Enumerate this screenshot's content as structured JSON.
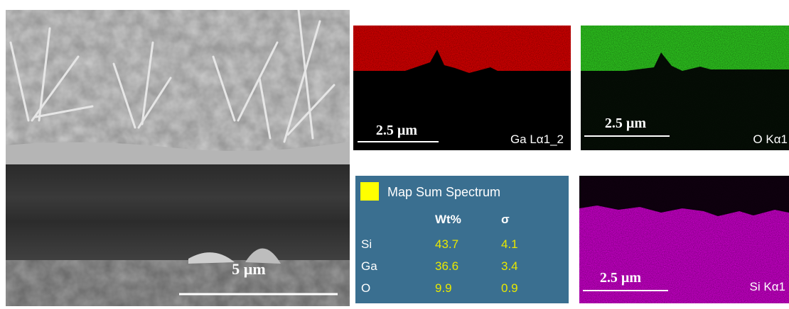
{
  "sem": {
    "scale_label": "5 µm"
  },
  "maps": [
    {
      "scale_label": "2.5 µm",
      "element": "Ga Lα1_2"
    },
    {
      "scale_label": "2.5 µm",
      "element": "O Kα1"
    },
    {
      "scale_label": "2.5 µm",
      "element": "Si Kα1"
    }
  ],
  "spectrum": {
    "title": "Map Sum Spectrum",
    "columns": [
      "Wt%",
      "σ"
    ],
    "rows": [
      [
        "Si",
        43.7,
        4.1
      ],
      [
        "Ga",
        36.6,
        3.4
      ],
      [
        "O",
        9.9,
        0.9
      ]
    ]
  }
}
